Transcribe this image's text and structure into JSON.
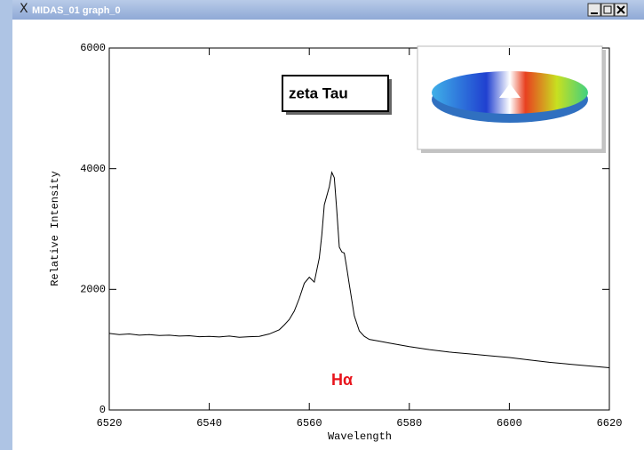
{
  "window": {
    "title": "MIDAS_01 graph_0"
  },
  "chart_data": {
    "type": "line",
    "annotation": "zeta Tau",
    "line_label": "Hα",
    "x_label": "Wavelength",
    "y_label": "Relative Intensity",
    "color": "#000000",
    "label_color": "#e8141c",
    "x": [
      6520,
      6522,
      6524,
      6526,
      6528,
      6530,
      6532,
      6534,
      6536,
      6538,
      6540,
      6542,
      6544,
      6546,
      6548,
      6550,
      6552,
      6554,
      6555,
      6556,
      6557,
      6558,
      6559,
      6560,
      6561,
      6562,
      6562.5,
      6563,
      6563.5,
      6564,
      6564.5,
      6565,
      6565.5,
      6566,
      6566.5,
      6567,
      6567.5,
      6568,
      6569,
      6570,
      6571,
      6572,
      6574,
      6576,
      6578,
      6580,
      6584,
      6588,
      6592,
      6596,
      6600,
      6604,
      6608,
      6612,
      6616,
      6620
    ],
    "values": [
      1270,
      1250,
      1260,
      1240,
      1250,
      1235,
      1240,
      1225,
      1230,
      1215,
      1220,
      1210,
      1225,
      1205,
      1215,
      1220,
      1260,
      1330,
      1410,
      1500,
      1640,
      1850,
      2100,
      2200,
      2120,
      2520,
      2900,
      3400,
      3550,
      3700,
      3940,
      3850,
      3300,
      2700,
      2620,
      2600,
      2350,
      2080,
      1560,
      1310,
      1220,
      1170,
      1140,
      1110,
      1080,
      1050,
      1000,
      960,
      930,
      900,
      870,
      830,
      790,
      760,
      730,
      700
    ],
    "xlim": [
      6520,
      6620
    ],
    "xticks": [
      6520,
      6540,
      6560,
      6580,
      6600,
      6620
    ],
    "ylim": [
      0,
      6000
    ],
    "yticks": [
      0,
      2000,
      4000,
      6000
    ]
  }
}
